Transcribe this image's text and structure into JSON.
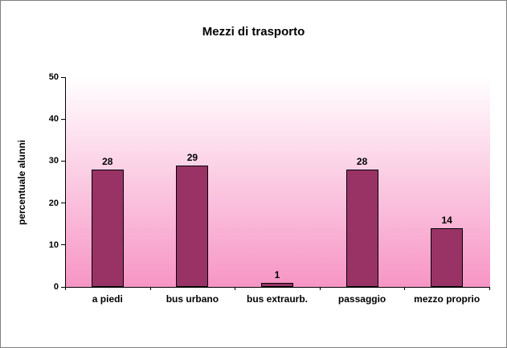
{
  "chart_data": {
    "type": "bar",
    "title": "Mezzi di trasporto",
    "xlabel": "",
    "ylabel": "percentuale alunni",
    "categories": [
      "a piedi",
      "bus urbano",
      "bus extraurb.",
      "passaggio",
      "mezzo proprio"
    ],
    "values": [
      28,
      29,
      1,
      28,
      14
    ],
    "ylim": [
      0,
      50
    ],
    "ytick_step": 10,
    "grid": false,
    "legend": "none",
    "bar_color": "#993366",
    "bar_border_color": "#000000",
    "plot_bg_gradient_top": "#ffffff",
    "plot_bg_gradient_bottom": "#f795c5",
    "text_color": "#000000",
    "frame_border_color": "#7f7f7f"
  }
}
